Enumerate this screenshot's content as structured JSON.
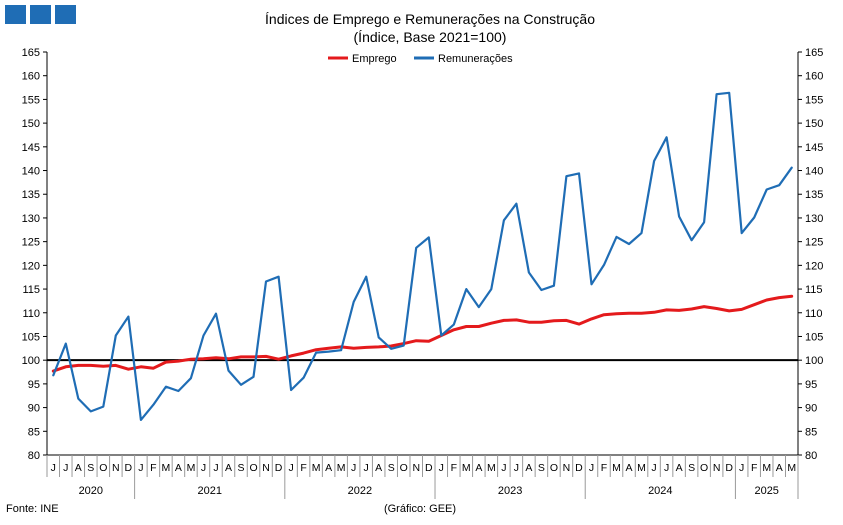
{
  "chart_data": {
    "type": "line",
    "title": "Índices de Emprego e Remunerações na Construção",
    "subtitle": "(Índice, Base 2021=100)",
    "xlabel": "",
    "ylabel": "",
    "ylim": [
      80,
      165
    ],
    "yticks": [
      80,
      85,
      90,
      95,
      100,
      105,
      110,
      115,
      120,
      125,
      130,
      135,
      140,
      145,
      150,
      155,
      160,
      165
    ],
    "y_axes": "left-and-right",
    "grid": false,
    "reference_line": 100,
    "legend_position": "top-center",
    "month_labels": [
      "J",
      "J",
      "A",
      "S",
      "O",
      "N",
      "D",
      "J",
      "F",
      "M",
      "A",
      "M",
      "J",
      "J",
      "A",
      "S",
      "O",
      "N",
      "D",
      "J",
      "F",
      "M",
      "A",
      "M",
      "J",
      "J",
      "A",
      "S",
      "O",
      "N",
      "D",
      "J",
      "F",
      "M",
      "A",
      "M",
      "J",
      "J",
      "A",
      "S",
      "O",
      "N",
      "D",
      "J",
      "F",
      "M",
      "A",
      "M",
      "J",
      "J",
      "A",
      "S",
      "O",
      "N",
      "D",
      "J",
      "F",
      "M",
      "A",
      "M"
    ],
    "year_groups": [
      {
        "label": "2020",
        "months": 7
      },
      {
        "label": "2021",
        "months": 12
      },
      {
        "label": "2022",
        "months": 12
      },
      {
        "label": "2023",
        "months": 12
      },
      {
        "label": "2024",
        "months": 12
      },
      {
        "label": "2025",
        "months": 5
      }
    ],
    "series": [
      {
        "name": "Emprego",
        "color": "#e41a1c",
        "values": [
          97.7,
          98.6,
          98.9,
          98.9,
          98.7,
          98.9,
          98.1,
          98.6,
          98.3,
          99.6,
          99.8,
          100.2,
          100.3,
          100.5,
          100.3,
          100.7,
          100.7,
          100.8,
          100.2,
          100.9,
          101.5,
          102.2,
          102.5,
          102.8,
          102.5,
          102.7,
          102.8,
          103.0,
          103.5,
          104.1,
          104.0,
          105.2,
          106.4,
          107.1,
          107.1,
          107.8,
          108.4,
          108.5,
          108.0,
          108.0,
          108.3,
          108.4,
          107.6,
          108.7,
          109.6,
          109.8,
          109.9,
          109.9,
          110.1,
          110.6,
          110.5,
          110.8,
          111.3,
          110.9,
          110.4,
          110.7,
          111.7,
          112.7,
          113.2,
          113.5
        ]
      },
      {
        "name": "Remunerações",
        "color": "#1f6db5",
        "values": [
          96.8,
          103.5,
          91.9,
          89.2,
          90.2,
          105.2,
          109.2,
          87.4,
          90.6,
          94.4,
          93.5,
          96.2,
          105.2,
          109.8,
          97.8,
          94.8,
          96.5,
          116.6,
          117.6,
          93.7,
          96.3,
          101.6,
          101.8,
          102.1,
          112.3,
          117.6,
          104.8,
          102.4,
          103.1,
          123.7,
          125.9,
          105.2,
          107.5,
          115.0,
          111.2,
          115.0,
          129.5,
          133.0,
          118.5,
          114.8,
          115.7,
          138.8,
          139.4,
          116.0,
          120.1,
          126.0,
          124.5,
          126.8,
          142.0,
          147.0,
          130.3,
          125.3,
          129.1,
          156.1,
          156.4,
          126.8,
          130.1,
          136.0,
          136.9,
          140.6
        ]
      }
    ]
  },
  "footer": {
    "source": "Fonte: INE",
    "credit": "(Gráfico: GEE)"
  },
  "colors": {
    "logo": "#1f6db5",
    "reference_line": "#000000",
    "axis": "#000000"
  }
}
